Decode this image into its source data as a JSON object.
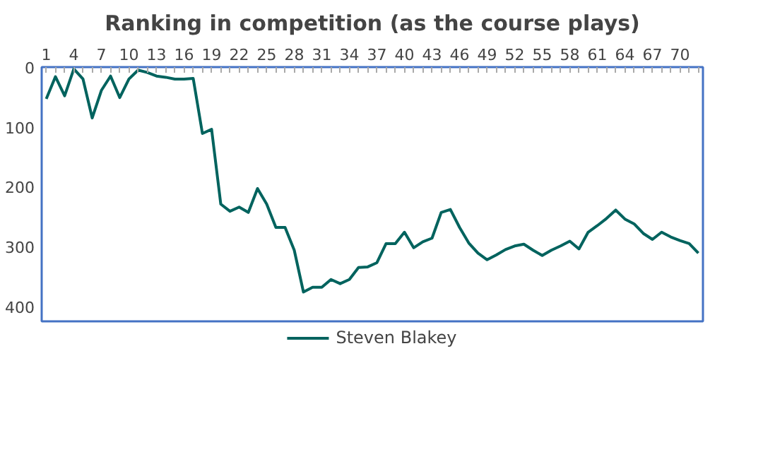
{
  "chart_data": {
    "type": "line",
    "title": "Ranking in competition (as the course plays)",
    "categories": [
      "1",
      null,
      null,
      "4",
      null,
      null,
      "7",
      null,
      null,
      "10",
      null,
      null,
      "13",
      null,
      null,
      "16",
      null,
      null,
      "19",
      null,
      null,
      "22",
      null,
      null,
      "25",
      null,
      null,
      "28",
      null,
      null,
      "31",
      null,
      null,
      "34",
      null,
      null,
      "37",
      null,
      null,
      "40",
      null,
      null,
      "43",
      null,
      null,
      "46",
      null,
      null,
      "49",
      null,
      null,
      "52",
      null,
      null,
      "55",
      null,
      null,
      "58",
      null,
      null,
      "61",
      null,
      null,
      "64",
      null,
      null,
      "67",
      null,
      null,
      "70",
      null,
      null
    ],
    "series": [
      {
        "name": "Steven Blakey",
        "color": "#00635e",
        "values": [
          53,
          16,
          48,
          3,
          20,
          85,
          39,
          15,
          51,
          20,
          5,
          9,
          15,
          17,
          20,
          20,
          19,
          111,
          104,
          229,
          241,
          234,
          243,
          203,
          229,
          268,
          268,
          306,
          376,
          368,
          368,
          355,
          362,
          355,
          335,
          334,
          327,
          295,
          295,
          276,
          302,
          292,
          286,
          243,
          238,
          268,
          294,
          311,
          322,
          314,
          305,
          299,
          296,
          306,
          315,
          306,
          299,
          291,
          304,
          276,
          265,
          253,
          239,
          254,
          262,
          278,
          288,
          276,
          284,
          290,
          295,
          311
        ]
      }
    ],
    "ylim": [
      425,
      0
    ],
    "yticks": [
      0,
      100,
      200,
      300,
      400
    ],
    "grid": false,
    "legend": "bottom",
    "marker": "none",
    "line_style": "solid"
  }
}
